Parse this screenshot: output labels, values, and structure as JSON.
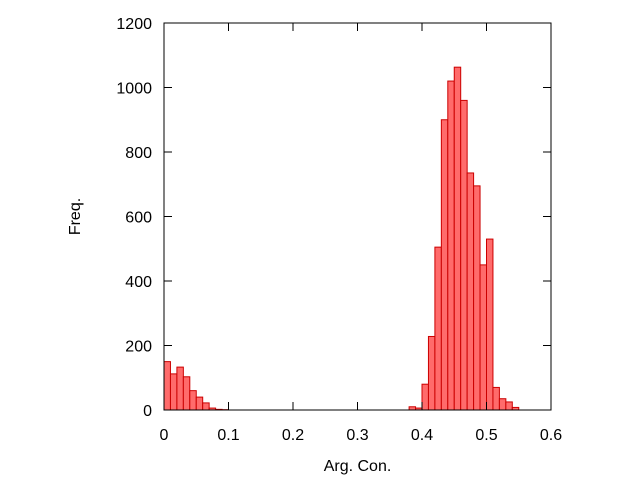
{
  "chart_data": {
    "type": "bar",
    "title": "",
    "xlabel": "Arg. Con.",
    "ylabel": "Freq.",
    "xlim": [
      0,
      0.6
    ],
    "ylim": [
      0,
      1200
    ],
    "bin_width": 0.01,
    "x_ticks": [
      "0",
      "0.1",
      "0.2",
      "0.3",
      "0.4",
      "0.5",
      "0.6"
    ],
    "y_ticks": [
      "0",
      "200",
      "400",
      "600",
      "800",
      "1000",
      "1200"
    ],
    "grid": false,
    "bar_color": "#ff6b6b",
    "bar_edge_color": "#cc0000",
    "bins": [
      {
        "x": 0.0,
        "value": 150
      },
      {
        "x": 0.01,
        "value": 112
      },
      {
        "x": 0.02,
        "value": 133
      },
      {
        "x": 0.03,
        "value": 103
      },
      {
        "x": 0.04,
        "value": 60
      },
      {
        "x": 0.05,
        "value": 40
      },
      {
        "x": 0.06,
        "value": 22
      },
      {
        "x": 0.07,
        "value": 6
      },
      {
        "x": 0.08,
        "value": 2
      },
      {
        "x": 0.09,
        "value": 1
      },
      {
        "x": 0.38,
        "value": 10
      },
      {
        "x": 0.39,
        "value": 6
      },
      {
        "x": 0.4,
        "value": 80
      },
      {
        "x": 0.41,
        "value": 228
      },
      {
        "x": 0.42,
        "value": 505
      },
      {
        "x": 0.43,
        "value": 900
      },
      {
        "x": 0.44,
        "value": 1020
      },
      {
        "x": 0.45,
        "value": 1063
      },
      {
        "x": 0.46,
        "value": 960
      },
      {
        "x": 0.47,
        "value": 735
      },
      {
        "x": 0.48,
        "value": 695
      },
      {
        "x": 0.49,
        "value": 450
      },
      {
        "x": 0.5,
        "value": 530
      },
      {
        "x": 0.51,
        "value": 70
      },
      {
        "x": 0.52,
        "value": 35
      },
      {
        "x": 0.53,
        "value": 25
      },
      {
        "x": 0.54,
        "value": 8
      }
    ]
  }
}
